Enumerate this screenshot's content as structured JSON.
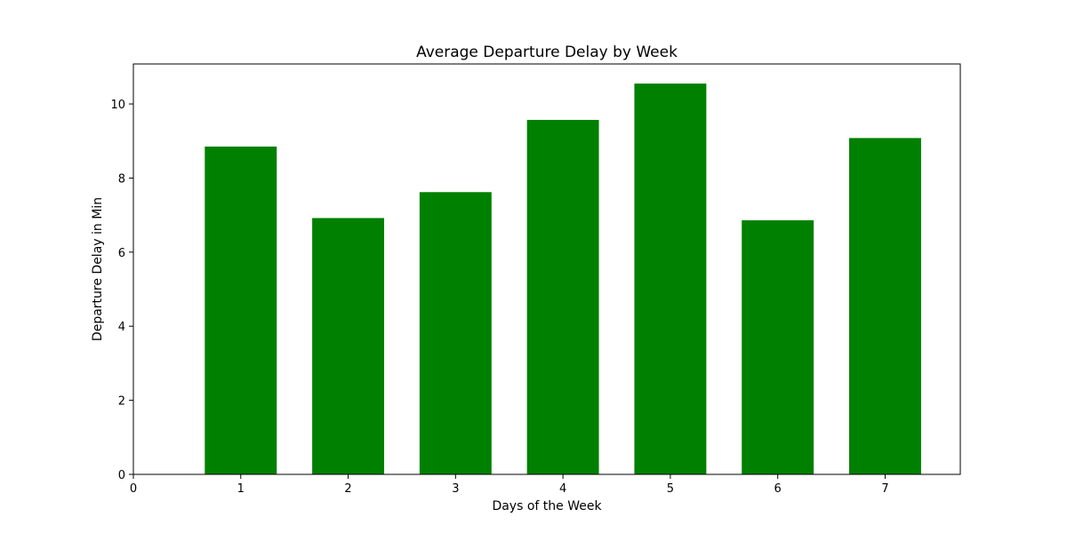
{
  "chart_data": {
    "type": "bar",
    "title": "Average Departure Delay by Week",
    "xlabel": "Days of the Week",
    "ylabel": "Departure Delay in Min",
    "x": [
      1,
      2,
      3,
      4,
      5,
      6,
      7
    ],
    "values": [
      8.85,
      6.92,
      7.62,
      9.57,
      10.55,
      6.86,
      9.08
    ],
    "xlim": [
      0,
      7.7
    ],
    "ylim": [
      0,
      11.08
    ],
    "xticks": [
      0,
      1,
      2,
      3,
      4,
      5,
      6,
      7
    ],
    "yticks": [
      0,
      2,
      4,
      6,
      8,
      10
    ],
    "bar_width": 0.67,
    "bar_color": "#008000",
    "grid": false,
    "legend": "none"
  }
}
